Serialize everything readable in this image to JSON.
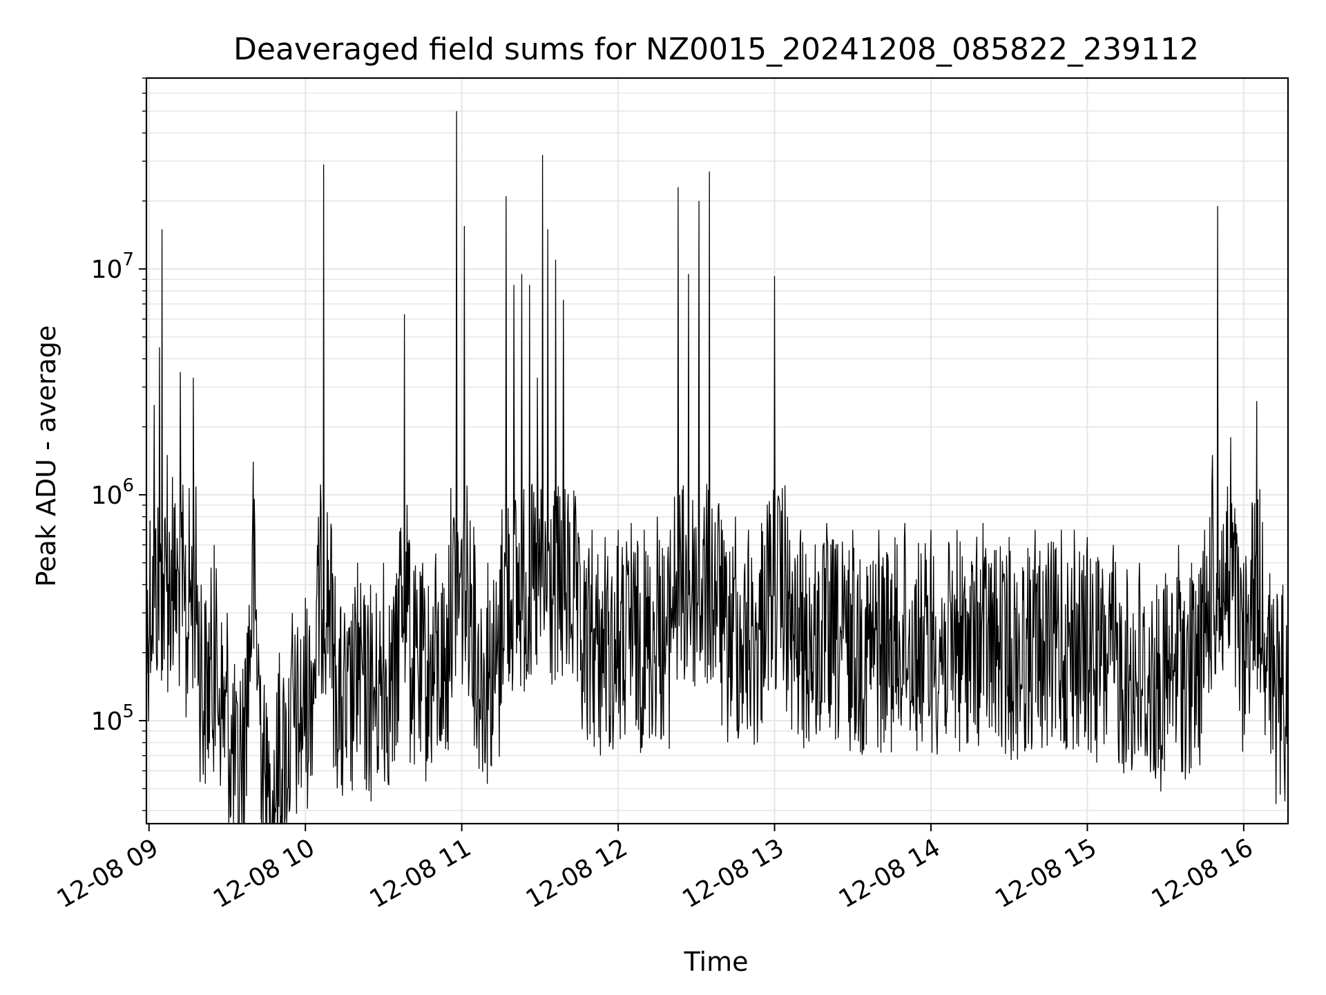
{
  "chart_data": {
    "type": "line",
    "title": "Deaveraged field sums for NZ0015_20241208_085822_239112",
    "xlabel": "Time",
    "ylabel": "Peak ADU - average",
    "y_scale": "log",
    "ylim": [
      35000,
      70000000
    ],
    "xlim": [
      "12-08 08:59",
      "12-08 16:17"
    ],
    "grid": true,
    "line_color": "#000000",
    "x_ticks": [
      "12-08 09",
      "12-08 10",
      "12-08 11",
      "12-08 12",
      "12-08 13",
      "12-08 14",
      "12-08 15",
      "12-08 16"
    ],
    "y_ticks": [
      {
        "base": "10",
        "exp": "5",
        "value": 100000
      },
      {
        "base": "10",
        "exp": "6",
        "value": 1000000
      },
      {
        "base": "10",
        "exp": "7",
        "value": 10000000
      }
    ],
    "series": [
      {
        "x": [
          "12-08 08:59",
          "12-08 09:02",
          "12-08 09:04",
          "12-08 09:05",
          "12-08 09:07",
          "12-08 09:09",
          "12-08 09:12",
          "12-08 09:14",
          "12-08 09:17",
          "12-08 09:20",
          "12-08 09:25",
          "12-08 09:30",
          "12-08 09:35",
          "12-08 09:40",
          "12-08 09:45",
          "12-08 09:50",
          "12-08 09:55",
          "12-08 10:00",
          "12-08 10:05",
          "12-08 10:07",
          "12-08 10:10",
          "12-08 10:15",
          "12-08 10:20",
          "12-08 10:25",
          "12-08 10:30",
          "12-08 10:35",
          "12-08 10:38",
          "12-08 10:40",
          "12-08 10:45",
          "12-08 10:50",
          "12-08 10:55",
          "12-08 10:58",
          "12-08 11:01",
          "12-08 11:05",
          "12-08 11:10",
          "12-08 11:15",
          "12-08 11:17",
          "12-08 11:20",
          "12-08 11:23",
          "12-08 11:26",
          "12-08 11:29",
          "12-08 11:31",
          "12-08 11:33",
          "12-08 11:36",
          "12-08 11:39",
          "12-08 11:45",
          "12-08 11:50",
          "12-08 11:55",
          "12-08 12:00",
          "12-08 12:05",
          "12-08 12:10",
          "12-08 12:15",
          "12-08 12:20",
          "12-08 12:23",
          "12-08 12:27",
          "12-08 12:31",
          "12-08 12:35",
          "12-08 12:40",
          "12-08 12:45",
          "12-08 12:50",
          "12-08 12:55",
          "12-08 13:00",
          "12-08 13:05",
          "12-08 13:10",
          "12-08 13:20",
          "12-08 13:30",
          "12-08 13:40",
          "12-08 13:50",
          "12-08 14:00",
          "12-08 14:10",
          "12-08 14:20",
          "12-08 14:30",
          "12-08 14:40",
          "12-08 14:50",
          "12-08 14:55",
          "12-08 15:00",
          "12-08 15:10",
          "12-08 15:20",
          "12-08 15:30",
          "12-08 15:35",
          "12-08 15:40",
          "12-08 15:45",
          "12-08 15:48",
          "12-08 15:50",
          "12-08 15:55",
          "12-08 16:00",
          "12-08 16:05",
          "12-08 16:10",
          "12-08 16:15",
          "12-08 16:17"
        ],
        "y": [
          700000,
          2500000,
          4500000,
          15000000,
          1500000,
          1200000,
          3500000,
          600000,
          3300000,
          400000,
          600000,
          300000,
          150000,
          1400000,
          120000,
          200000,
          300000,
          350000,
          800000,
          29000000,
          700000,
          300000,
          500000,
          400000,
          500000,
          450000,
          6300000,
          600000,
          500000,
          550000,
          600000,
          50000000,
          15500000,
          600000,
          500000,
          600000,
          21000000,
          8500000,
          9500000,
          8500000,
          3300000,
          32000000,
          15000000,
          11000000,
          7300000,
          650000,
          700000,
          650000,
          700000,
          750000,
          700000,
          800000,
          700000,
          23000000,
          9500000,
          20000000,
          27000000,
          700000,
          800000,
          700000,
          750000,
          9300000,
          800000,
          700000,
          750000,
          700000,
          700000,
          750000,
          700000,
          700000,
          750000,
          650000,
          700000,
          700000,
          700000,
          650000,
          600000,
          500000,
          450000,
          600000,
          500000,
          700000,
          1500000,
          19000000,
          1800000,
          500000,
          2600000,
          450000,
          400000,
          350000
        ]
      }
    ]
  }
}
